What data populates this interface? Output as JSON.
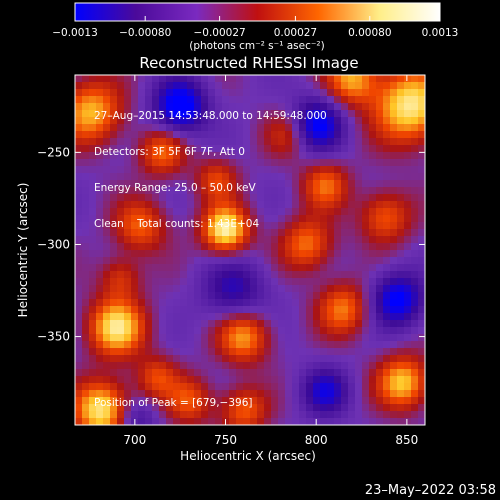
{
  "chart_data": {
    "type": "heatmap",
    "title": "Reconstructed RHESSI Image",
    "xlabel": "Heliocentric X (arcsec)",
    "ylabel": "Heliocentric Y (arcsec)",
    "xlim": [
      667,
      860
    ],
    "ylim": [
      -398,
      -208
    ],
    "xticks": [
      700,
      750,
      800,
      850
    ],
    "yticks": [
      -250,
      -300,
      -350
    ],
    "xtick_labels": [
      "700",
      "750",
      "800",
      "850"
    ],
    "ytick_labels": [
      "−250",
      "−300",
      "−350"
    ],
    "grid": false,
    "colorbar": {
      "position": "top",
      "range": [
        -0.0013,
        0.0013
      ],
      "tick_values": [
        -0.0013,
        -0.0008,
        -0.00027,
        0.00027,
        0.0008,
        0.0013
      ],
      "tick_labels": [
        "−0.0013",
        "−0.00080",
        "−0.00027",
        "0.00027",
        "0.00080",
        "0.0013"
      ],
      "unit_label": "(photons cm⁻² s⁻¹ asec⁻²)",
      "colors": [
        "#0000ff",
        "#4b0a9a",
        "#7a2ac0",
        "#c01010",
        "#ff6600",
        "#ffee88",
        "#ffffff"
      ]
    },
    "annotations": [
      "27–Aug–2015 14:53:48.000 to 14:59:48.000",
      "Detectors: 3F 5F 6F 7F, Att 0",
      "Energy Range: 25.0 – 50.0 keV",
      "Clean    Total counts: 1.43E+04"
    ],
    "peak_label": "Position of Peak = [679,−396]",
    "peak": {
      "x": 679,
      "y": -396
    },
    "sources": [
      {
        "x": 750,
        "y": -292,
        "amplitude": 1.0,
        "width": 9
      },
      {
        "x": 852,
        "y": -225,
        "amplitude": 0.95,
        "width": 14
      },
      {
        "x": 820,
        "y": -210,
        "amplitude": 0.7,
        "width": 10
      },
      {
        "x": 682,
        "y": -390,
        "amplitude": 0.95,
        "width": 11
      },
      {
        "x": 690,
        "y": -345,
        "amplitude": 0.9,
        "width": 11
      },
      {
        "x": 676,
        "y": -228,
        "amplitude": 0.75,
        "width": 12
      },
      {
        "x": 715,
        "y": -250,
        "amplitude": 0.55,
        "width": 9
      },
      {
        "x": 703,
        "y": -290,
        "amplitude": 0.55,
        "width": 10
      },
      {
        "x": 805,
        "y": -268,
        "amplitude": 0.55,
        "width": 9
      },
      {
        "x": 795,
        "y": -300,
        "amplitude": 0.6,
        "width": 10
      },
      {
        "x": 838,
        "y": -285,
        "amplitude": 0.55,
        "width": 10
      },
      {
        "x": 815,
        "y": -335,
        "amplitude": 0.6,
        "width": 10
      },
      {
        "x": 848,
        "y": -375,
        "amplitude": 0.8,
        "width": 10
      },
      {
        "x": 760,
        "y": -350,
        "amplitude": 0.7,
        "width": 10
      },
      {
        "x": 760,
        "y": -390,
        "amplitude": 0.55,
        "width": 9
      },
      {
        "x": 730,
        "y": -385,
        "amplitude": 0.5,
        "width": 9
      },
      {
        "x": 712,
        "y": -372,
        "amplitude": 0.45,
        "width": 8
      },
      {
        "x": 785,
        "y": -240,
        "amplitude": 0.4,
        "width": 9
      },
      {
        "x": 745,
        "y": -265,
        "amplitude": 0.45,
        "width": 8
      },
      {
        "x": 692,
        "y": -318,
        "amplitude": 0.4,
        "width": 8
      }
    ],
    "negative_regions": [
      {
        "x": 725,
        "y": -225,
        "amplitude": -0.9,
        "width": 10
      },
      {
        "x": 800,
        "y": -235,
        "amplitude": -0.8,
        "width": 10
      },
      {
        "x": 755,
        "y": -325,
        "amplitude": -0.5,
        "width": 12
      },
      {
        "x": 845,
        "y": -330,
        "amplitude": -0.8,
        "width": 10
      },
      {
        "x": 805,
        "y": -380,
        "amplitude": -0.6,
        "width": 9
      },
      {
        "x": 700,
        "y": -395,
        "amplitude": -0.4,
        "width": 8
      }
    ]
  },
  "footer": {
    "timestamp": "23–May–2022 03:58"
  }
}
